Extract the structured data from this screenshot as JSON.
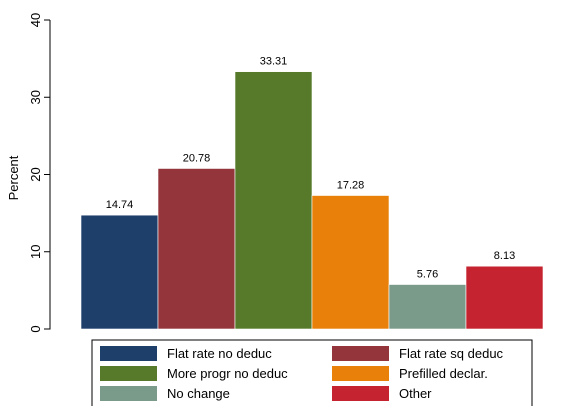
{
  "chart_data": {
    "type": "bar",
    "title": "",
    "xlabel": "",
    "ylabel": "Percent",
    "ylim": [
      0,
      40
    ],
    "yticks": [
      0,
      10,
      20,
      30,
      40
    ],
    "grid": false,
    "legend_position": "bottom",
    "series": [
      {
        "name": "Flat rate no deduc",
        "value": 14.74,
        "label": "14.74",
        "color": "#1f3f6b"
      },
      {
        "name": "Flat rate sq deduc",
        "value": 20.78,
        "label": "20.78",
        "color": "#94353b"
      },
      {
        "name": "More progr no deduc",
        "value": 33.31,
        "label": "33.31",
        "color": "#567a2a"
      },
      {
        "name": "Prefilled declar.",
        "value": 17.28,
        "label": "17.28",
        "color": "#e88009"
      },
      {
        "name": "No change",
        "value": 5.76,
        "label": "5.76",
        "color": "#7a9a8a"
      },
      {
        "name": "Other",
        "value": 8.13,
        "label": "8.13",
        "color": "#c5232f"
      }
    ]
  }
}
